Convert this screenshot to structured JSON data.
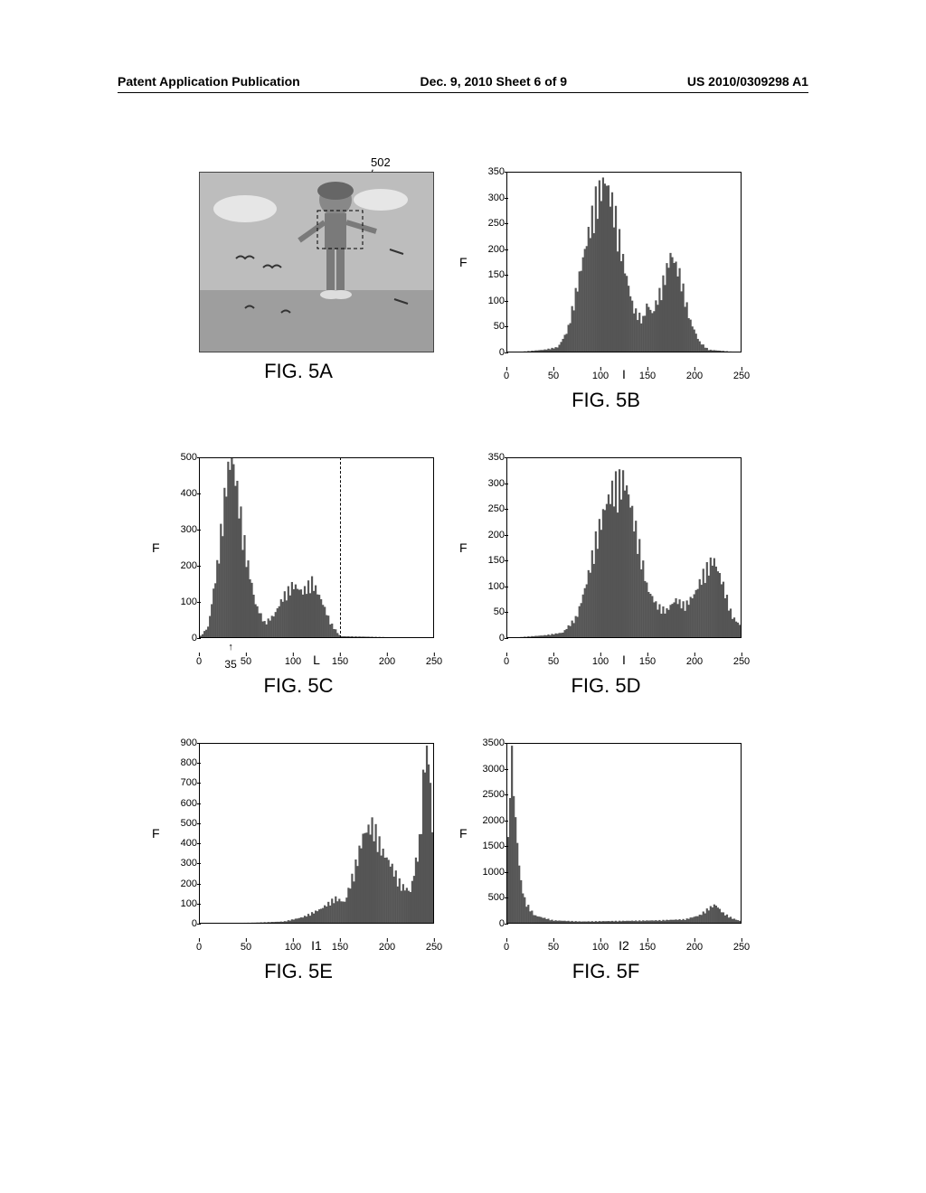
{
  "header": {
    "left": "Patent Application Publication",
    "center": "Dec. 9, 2010  Sheet 6 of 9",
    "right": "US 2010/0309298 A1"
  },
  "callout_502": "502",
  "figures": {
    "a": {
      "label": "FIG. 5A",
      "illustration": {
        "sky_color": "#b8b8b8",
        "ground_color": "#9a9a9a",
        "cloud_color": "#e8e8e8",
        "person_color": "#787878",
        "box_label": "502"
      }
    },
    "b": {
      "label": "FIG. 5B",
      "ylabel": "F",
      "xlabel": "I",
      "ylim": [
        0,
        350
      ],
      "xlim": [
        0,
        250
      ],
      "yticks": [
        0,
        50,
        100,
        150,
        200,
        250,
        300,
        350
      ],
      "xticks": [
        0,
        50,
        100,
        150,
        200,
        250
      ],
      "hist_color": "#555555",
      "data": [
        [
          0,
          0
        ],
        [
          20,
          2
        ],
        [
          40,
          5
        ],
        [
          55,
          10
        ],
        [
          65,
          40
        ],
        [
          75,
          120
        ],
        [
          85,
          200
        ],
        [
          95,
          280
        ],
        [
          105,
          315
        ],
        [
          115,
          260
        ],
        [
          125,
          160
        ],
        [
          135,
          80
        ],
        [
          145,
          60
        ],
        [
          150,
          90
        ],
        [
          155,
          70
        ],
        [
          165,
          120
        ],
        [
          175,
          180
        ],
        [
          185,
          140
        ],
        [
          195,
          60
        ],
        [
          205,
          20
        ],
        [
          215,
          5
        ],
        [
          250,
          0
        ]
      ]
    },
    "c": {
      "label": "FIG. 5C",
      "ylabel": "F",
      "xlabel": "L",
      "ylim": [
        0,
        500
      ],
      "xlim": [
        0,
        250
      ],
      "yticks": [
        0,
        100,
        200,
        300,
        400,
        500
      ],
      "xticks": [
        0,
        50,
        100,
        150,
        200,
        250
      ],
      "hist_color": "#555555",
      "dashed_x": 150,
      "annot_35": {
        "x": 35,
        "text": "35"
      },
      "data": [
        [
          0,
          0
        ],
        [
          10,
          30
        ],
        [
          20,
          200
        ],
        [
          30,
          430
        ],
        [
          35,
          470
        ],
        [
          40,
          400
        ],
        [
          50,
          220
        ],
        [
          60,
          90
        ],
        [
          70,
          40
        ],
        [
          80,
          60
        ],
        [
          90,
          110
        ],
        [
          100,
          140
        ],
        [
          110,
          120
        ],
        [
          120,
          150
        ],
        [
          130,
          100
        ],
        [
          140,
          40
        ],
        [
          150,
          5
        ],
        [
          250,
          0
        ]
      ]
    },
    "d": {
      "label": "FIG. 5D",
      "ylabel": "F",
      "xlabel": "I",
      "ylim": [
        0,
        350
      ],
      "xlim": [
        0,
        250
      ],
      "yticks": [
        0,
        50,
        100,
        150,
        200,
        250,
        300,
        350
      ],
      "xticks": [
        0,
        50,
        100,
        150,
        200,
        250
      ],
      "hist_color": "#555555",
      "data": [
        [
          0,
          0
        ],
        [
          40,
          5
        ],
        [
          60,
          10
        ],
        [
          75,
          40
        ],
        [
          85,
          100
        ],
        [
          95,
          180
        ],
        [
          105,
          240
        ],
        [
          115,
          280
        ],
        [
          125,
          290
        ],
        [
          130,
          260
        ],
        [
          140,
          180
        ],
        [
          150,
          90
        ],
        [
          160,
          60
        ],
        [
          170,
          50
        ],
        [
          180,
          70
        ],
        [
          190,
          60
        ],
        [
          200,
          80
        ],
        [
          210,
          120
        ],
        [
          220,
          145
        ],
        [
          230,
          100
        ],
        [
          240,
          40
        ],
        [
          250,
          20
        ]
      ]
    },
    "e": {
      "label": "FIG. 5E",
      "ylabel": "F",
      "xlabel": "I1",
      "ylim": [
        0,
        900
      ],
      "xlim": [
        0,
        250
      ],
      "yticks": [
        0,
        100,
        200,
        300,
        400,
        500,
        600,
        700,
        800,
        900
      ],
      "xticks": [
        0,
        50,
        100,
        150,
        200,
        250
      ],
      "hist_color": "#555555",
      "data": [
        [
          0,
          0
        ],
        [
          60,
          5
        ],
        [
          90,
          10
        ],
        [
          110,
          30
        ],
        [
          130,
          70
        ],
        [
          145,
          120
        ],
        [
          155,
          100
        ],
        [
          165,
          250
        ],
        [
          175,
          420
        ],
        [
          185,
          470
        ],
        [
          195,
          340
        ],
        [
          205,
          270
        ],
        [
          215,
          180
        ],
        [
          225,
          150
        ],
        [
          235,
          400
        ],
        [
          240,
          800
        ],
        [
          245,
          780
        ],
        [
          250,
          200
        ]
      ]
    },
    "f": {
      "label": "FIG. 5F",
      "ylabel": "F",
      "xlabel": "I2",
      "ylim": [
        0,
        3500
      ],
      "xlim": [
        0,
        250
      ],
      "yticks": [
        0,
        500,
        1000,
        1500,
        2000,
        2500,
        3000,
        3500
      ],
      "xticks": [
        0,
        50,
        100,
        150,
        200,
        250
      ],
      "hist_color": "#555555",
      "data": [
        [
          0,
          300
        ],
        [
          5,
          3300
        ],
        [
          10,
          1800
        ],
        [
          15,
          800
        ],
        [
          20,
          400
        ],
        [
          30,
          150
        ],
        [
          50,
          60
        ],
        [
          80,
          40
        ],
        [
          120,
          50
        ],
        [
          160,
          60
        ],
        [
          190,
          80
        ],
        [
          205,
          150
        ],
        [
          215,
          280
        ],
        [
          222,
          350
        ],
        [
          230,
          200
        ],
        [
          240,
          100
        ],
        [
          250,
          40
        ]
      ]
    }
  }
}
